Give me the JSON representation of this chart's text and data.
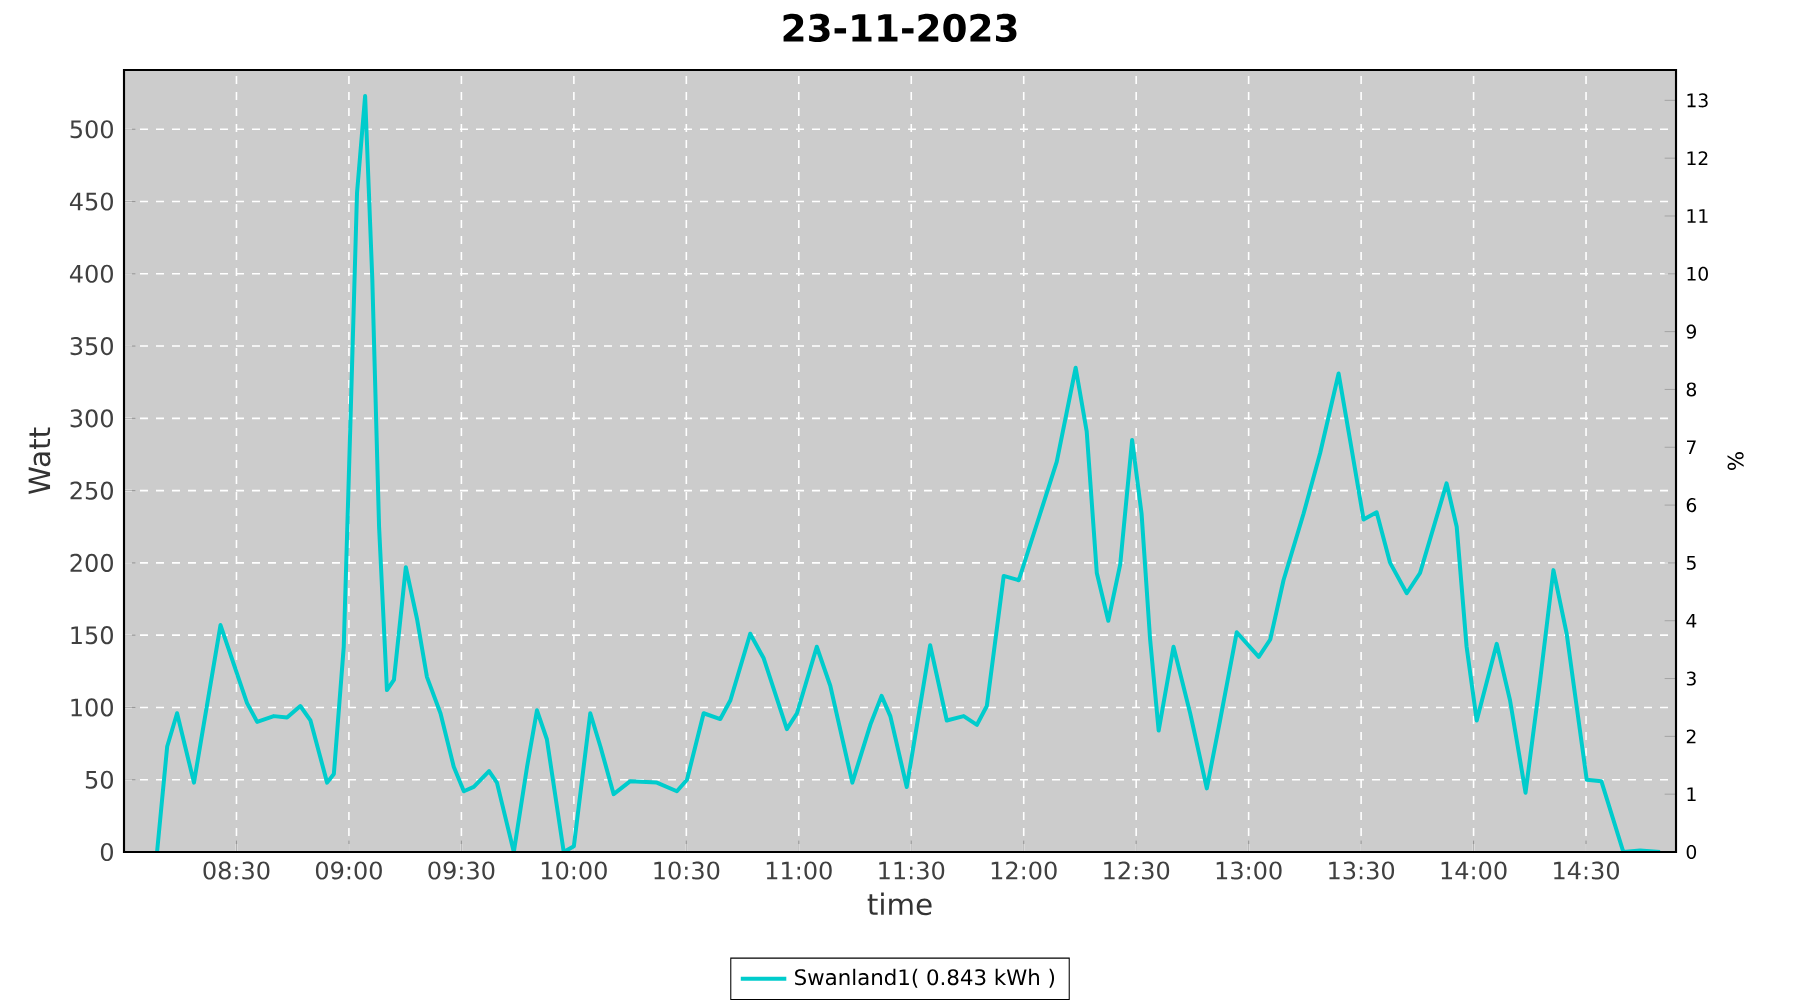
{
  "chart_data": {
    "type": "line",
    "title": "23-11-2023",
    "xlabel": "time",
    "ylabel": "Watt",
    "y2label": "%",
    "xlim": [
      8.0,
      14.9
    ],
    "ylim": [
      0,
      541
    ],
    "y2lim": [
      0,
      13.525
    ],
    "xticks": [
      {
        "value": 8.5,
        "label": "08:30"
      },
      {
        "value": 9.0,
        "label": "09:00"
      },
      {
        "value": 9.5,
        "label": "09:30"
      },
      {
        "value": 10.0,
        "label": "10:00"
      },
      {
        "value": 10.5,
        "label": "10:30"
      },
      {
        "value": 11.0,
        "label": "11:00"
      },
      {
        "value": 11.5,
        "label": "11:30"
      },
      {
        "value": 12.0,
        "label": "12:00"
      },
      {
        "value": 12.5,
        "label": "12:30"
      },
      {
        "value": 13.0,
        "label": "13:00"
      },
      {
        "value": 13.5,
        "label": "13:30"
      },
      {
        "value": 14.0,
        "label": "14:00"
      },
      {
        "value": 14.5,
        "label": "14:30"
      }
    ],
    "yticks": [
      0,
      50,
      100,
      150,
      200,
      250,
      300,
      350,
      400,
      450,
      500
    ],
    "y2ticks": [
      0,
      1,
      2,
      3,
      4,
      5,
      6,
      7,
      8,
      9,
      10,
      11,
      12,
      13
    ],
    "grid": true,
    "legend": "bottom",
    "marker": "none",
    "line_style": "solid",
    "series": [
      {
        "name": "Swanland1( 0.843 kWh )",
        "color": "#00cccc",
        "x": [
          8.147,
          8.192,
          8.236,
          8.311,
          8.429,
          8.547,
          8.592,
          8.666,
          8.725,
          8.784,
          8.829,
          8.903,
          8.933,
          8.977,
          9.007,
          9.036,
          9.072,
          9.104,
          9.134,
          9.169,
          9.2,
          9.253,
          9.303,
          9.347,
          9.407,
          9.466,
          9.511,
          9.555,
          9.623,
          9.658,
          9.733,
          9.792,
          9.836,
          9.88,
          9.955,
          10.0,
          10.073,
          10.118,
          10.177,
          10.251,
          10.369,
          10.458,
          10.503,
          10.577,
          10.651,
          10.696,
          10.784,
          10.844,
          10.947,
          10.992,
          11.08,
          11.14,
          11.238,
          11.318,
          11.368,
          11.407,
          11.48,
          11.584,
          11.658,
          11.733,
          11.792,
          11.836,
          11.911,
          11.978,
          12.073,
          12.147,
          12.231,
          12.28,
          12.325,
          12.376,
          12.429,
          12.482,
          12.524,
          12.562,
          12.6,
          12.666,
          12.74,
          12.814,
          12.873,
          12.947,
          13.045,
          13.096,
          13.155,
          13.244,
          13.318,
          13.4,
          13.451,
          13.511,
          13.569,
          13.629,
          13.703,
          13.762,
          13.88,
          13.925,
          13.969,
          14.014,
          14.103,
          14.162,
          14.231,
          14.296,
          14.355,
          14.414,
          14.503,
          14.568,
          14.666,
          14.74,
          14.829
        ],
        "values": [
          0,
          73,
          96,
          48,
          157,
          103,
          90,
          94,
          93,
          101,
          91,
          48,
          54,
          142,
          299,
          456,
          523,
          396,
          225,
          112,
          119,
          197,
          161,
          121,
          96,
          59,
          42,
          45,
          56,
          48,
          0,
          59,
          98,
          78,
          0,
          4,
          96,
          73,
          40,
          49,
          48,
          42,
          50,
          96,
          92,
          105,
          151,
          134,
          85,
          96,
          142,
          115,
          48,
          88,
          108,
          94,
          45,
          143,
          91,
          94,
          88,
          101,
          191,
          188,
          234,
          270,
          335,
          291,
          193,
          160,
          199,
          285,
          234,
          147,
          84,
          142,
          96,
          44,
          91,
          152,
          135,
          147,
          188,
          234,
          276,
          331,
          285,
          230,
          235,
          200,
          179,
          193,
          255,
          225,
          142,
          91,
          144,
          105,
          41,
          119,
          195,
          151,
          50,
          49,
          0,
          1,
          0
        ]
      }
    ]
  }
}
